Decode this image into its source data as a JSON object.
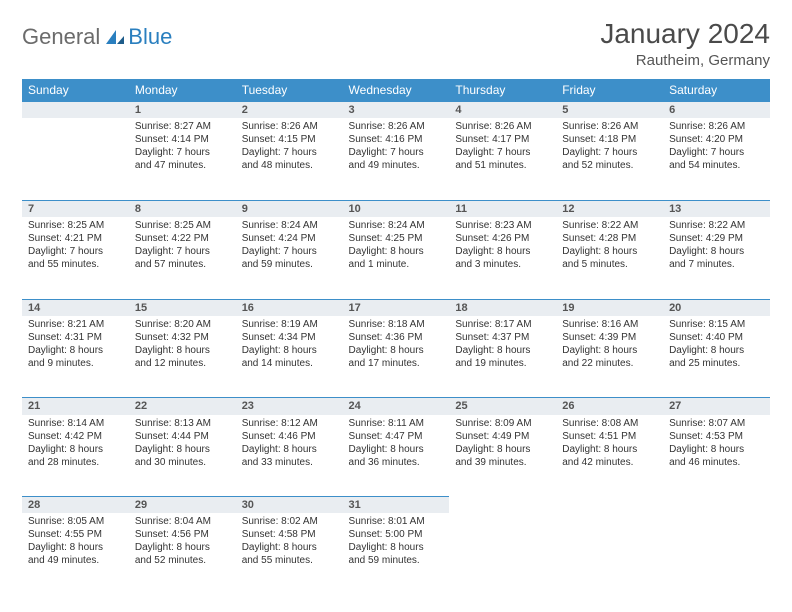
{
  "logo": {
    "part1": "General",
    "part2": "Blue"
  },
  "title": "January 2024",
  "location": "Rautheim, Germany",
  "colors": {
    "header_bg": "#3d8fc9",
    "header_text": "#ffffff",
    "daynum_bg": "#e9edf1",
    "border": "#3d8fc9",
    "text": "#333333",
    "logo_gray": "#6b6b6b",
    "logo_blue": "#2a7fbf"
  },
  "weekdays": [
    "Sunday",
    "Monday",
    "Tuesday",
    "Wednesday",
    "Thursday",
    "Friday",
    "Saturday"
  ],
  "weeks": [
    [
      null,
      {
        "n": "1",
        "sr": "Sunrise: 8:27 AM",
        "ss": "Sunset: 4:14 PM",
        "d1": "Daylight: 7 hours",
        "d2": "and 47 minutes."
      },
      {
        "n": "2",
        "sr": "Sunrise: 8:26 AM",
        "ss": "Sunset: 4:15 PM",
        "d1": "Daylight: 7 hours",
        "d2": "and 48 minutes."
      },
      {
        "n": "3",
        "sr": "Sunrise: 8:26 AM",
        "ss": "Sunset: 4:16 PM",
        "d1": "Daylight: 7 hours",
        "d2": "and 49 minutes."
      },
      {
        "n": "4",
        "sr": "Sunrise: 8:26 AM",
        "ss": "Sunset: 4:17 PM",
        "d1": "Daylight: 7 hours",
        "d2": "and 51 minutes."
      },
      {
        "n": "5",
        "sr": "Sunrise: 8:26 AM",
        "ss": "Sunset: 4:18 PM",
        "d1": "Daylight: 7 hours",
        "d2": "and 52 minutes."
      },
      {
        "n": "6",
        "sr": "Sunrise: 8:26 AM",
        "ss": "Sunset: 4:20 PM",
        "d1": "Daylight: 7 hours",
        "d2": "and 54 minutes."
      }
    ],
    [
      {
        "n": "7",
        "sr": "Sunrise: 8:25 AM",
        "ss": "Sunset: 4:21 PM",
        "d1": "Daylight: 7 hours",
        "d2": "and 55 minutes."
      },
      {
        "n": "8",
        "sr": "Sunrise: 8:25 AM",
        "ss": "Sunset: 4:22 PM",
        "d1": "Daylight: 7 hours",
        "d2": "and 57 minutes."
      },
      {
        "n": "9",
        "sr": "Sunrise: 8:24 AM",
        "ss": "Sunset: 4:24 PM",
        "d1": "Daylight: 7 hours",
        "d2": "and 59 minutes."
      },
      {
        "n": "10",
        "sr": "Sunrise: 8:24 AM",
        "ss": "Sunset: 4:25 PM",
        "d1": "Daylight: 8 hours",
        "d2": "and 1 minute."
      },
      {
        "n": "11",
        "sr": "Sunrise: 8:23 AM",
        "ss": "Sunset: 4:26 PM",
        "d1": "Daylight: 8 hours",
        "d2": "and 3 minutes."
      },
      {
        "n": "12",
        "sr": "Sunrise: 8:22 AM",
        "ss": "Sunset: 4:28 PM",
        "d1": "Daylight: 8 hours",
        "d2": "and 5 minutes."
      },
      {
        "n": "13",
        "sr": "Sunrise: 8:22 AM",
        "ss": "Sunset: 4:29 PM",
        "d1": "Daylight: 8 hours",
        "d2": "and 7 minutes."
      }
    ],
    [
      {
        "n": "14",
        "sr": "Sunrise: 8:21 AM",
        "ss": "Sunset: 4:31 PM",
        "d1": "Daylight: 8 hours",
        "d2": "and 9 minutes."
      },
      {
        "n": "15",
        "sr": "Sunrise: 8:20 AM",
        "ss": "Sunset: 4:32 PM",
        "d1": "Daylight: 8 hours",
        "d2": "and 12 minutes."
      },
      {
        "n": "16",
        "sr": "Sunrise: 8:19 AM",
        "ss": "Sunset: 4:34 PM",
        "d1": "Daylight: 8 hours",
        "d2": "and 14 minutes."
      },
      {
        "n": "17",
        "sr": "Sunrise: 8:18 AM",
        "ss": "Sunset: 4:36 PM",
        "d1": "Daylight: 8 hours",
        "d2": "and 17 minutes."
      },
      {
        "n": "18",
        "sr": "Sunrise: 8:17 AM",
        "ss": "Sunset: 4:37 PM",
        "d1": "Daylight: 8 hours",
        "d2": "and 19 minutes."
      },
      {
        "n": "19",
        "sr": "Sunrise: 8:16 AM",
        "ss": "Sunset: 4:39 PM",
        "d1": "Daylight: 8 hours",
        "d2": "and 22 minutes."
      },
      {
        "n": "20",
        "sr": "Sunrise: 8:15 AM",
        "ss": "Sunset: 4:40 PM",
        "d1": "Daylight: 8 hours",
        "d2": "and 25 minutes."
      }
    ],
    [
      {
        "n": "21",
        "sr": "Sunrise: 8:14 AM",
        "ss": "Sunset: 4:42 PM",
        "d1": "Daylight: 8 hours",
        "d2": "and 28 minutes."
      },
      {
        "n": "22",
        "sr": "Sunrise: 8:13 AM",
        "ss": "Sunset: 4:44 PM",
        "d1": "Daylight: 8 hours",
        "d2": "and 30 minutes."
      },
      {
        "n": "23",
        "sr": "Sunrise: 8:12 AM",
        "ss": "Sunset: 4:46 PM",
        "d1": "Daylight: 8 hours",
        "d2": "and 33 minutes."
      },
      {
        "n": "24",
        "sr": "Sunrise: 8:11 AM",
        "ss": "Sunset: 4:47 PM",
        "d1": "Daylight: 8 hours",
        "d2": "and 36 minutes."
      },
      {
        "n": "25",
        "sr": "Sunrise: 8:09 AM",
        "ss": "Sunset: 4:49 PM",
        "d1": "Daylight: 8 hours",
        "d2": "and 39 minutes."
      },
      {
        "n": "26",
        "sr": "Sunrise: 8:08 AM",
        "ss": "Sunset: 4:51 PM",
        "d1": "Daylight: 8 hours",
        "d2": "and 42 minutes."
      },
      {
        "n": "27",
        "sr": "Sunrise: 8:07 AM",
        "ss": "Sunset: 4:53 PM",
        "d1": "Daylight: 8 hours",
        "d2": "and 46 minutes."
      }
    ],
    [
      {
        "n": "28",
        "sr": "Sunrise: 8:05 AM",
        "ss": "Sunset: 4:55 PM",
        "d1": "Daylight: 8 hours",
        "d2": "and 49 minutes."
      },
      {
        "n": "29",
        "sr": "Sunrise: 8:04 AM",
        "ss": "Sunset: 4:56 PM",
        "d1": "Daylight: 8 hours",
        "d2": "and 52 minutes."
      },
      {
        "n": "30",
        "sr": "Sunrise: 8:02 AM",
        "ss": "Sunset: 4:58 PM",
        "d1": "Daylight: 8 hours",
        "d2": "and 55 minutes."
      },
      {
        "n": "31",
        "sr": "Sunrise: 8:01 AM",
        "ss": "Sunset: 5:00 PM",
        "d1": "Daylight: 8 hours",
        "d2": "and 59 minutes."
      },
      null,
      null,
      null
    ]
  ]
}
